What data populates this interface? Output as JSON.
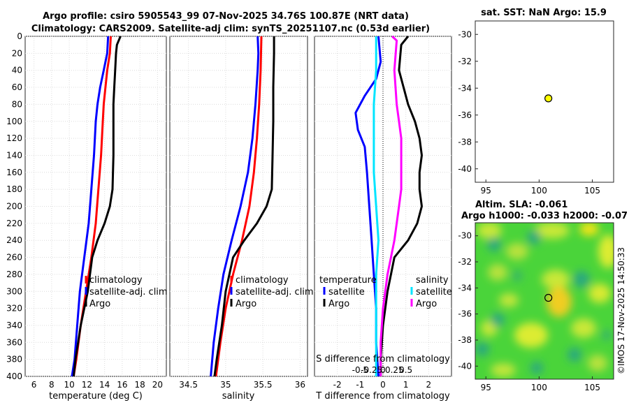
{
  "header": {
    "title_line1": "Argo profile: csiro 5905543_99 07-Nov-2025 34.76S 100.87E (NRT data)",
    "title_line2": "Climatology: CARS2009. Satellite-adj clim: synTS_20251107.nc (0.53d earlier)"
  },
  "colors": {
    "climatology": "#ff0000",
    "satellite": "#0000ff",
    "argo": "#000000",
    "sat_diff_T": "#0000ff",
    "sat_diff_S": "#00e5ff",
    "argo_diff_S": "#ff00ff",
    "marker": "#ffff00"
  },
  "chart_data": [
    {
      "type": "line",
      "name": "temperature-profile",
      "xlabel": "temperature (deg C)",
      "ylabel": "",
      "xlim": [
        5,
        21
      ],
      "ylim": [
        400,
        0
      ],
      "xticks": [
        6,
        8,
        10,
        12,
        14,
        16,
        18,
        20
      ],
      "yticks": [
        0,
        20,
        40,
        60,
        80,
        100,
        120,
        140,
        160,
        180,
        200,
        220,
        240,
        260,
        280,
        300,
        320,
        340,
        360,
        380,
        400
      ],
      "grid": true,
      "legend": [
        "climatology",
        "satellite-adj. clim",
        "Argo"
      ],
      "series": [
        {
          "name": "climatology",
          "color": "#ff0000",
          "points": [
            [
              14.7,
              0
            ],
            [
              14.6,
              20
            ],
            [
              14.3,
              40
            ],
            [
              14.1,
              60
            ],
            [
              13.9,
              80
            ],
            [
              13.8,
              100
            ],
            [
              13.6,
              140
            ],
            [
              13.3,
              180
            ],
            [
              13.0,
              220
            ],
            [
              12.5,
              260
            ],
            [
              11.9,
              300
            ],
            [
              11.3,
              340
            ],
            [
              10.8,
              380
            ],
            [
              10.5,
              400
            ]
          ]
        },
        {
          "name": "satellite-adj. clim",
          "color": "#0000ff",
          "points": [
            [
              14.4,
              0
            ],
            [
              14.3,
              20
            ],
            [
              13.9,
              40
            ],
            [
              13.5,
              60
            ],
            [
              13.2,
              80
            ],
            [
              13.0,
              100
            ],
            [
              12.8,
              140
            ],
            [
              12.5,
              180
            ],
            [
              12.2,
              220
            ],
            [
              11.7,
              260
            ],
            [
              11.2,
              300
            ],
            [
              10.9,
              340
            ],
            [
              10.6,
              380
            ],
            [
              10.3,
              400
            ]
          ]
        },
        {
          "name": "Argo",
          "color": "#000000",
          "points": [
            [
              15.8,
              0
            ],
            [
              15.4,
              10
            ],
            [
              15.3,
              20
            ],
            [
              15.2,
              40
            ],
            [
              15.1,
              60
            ],
            [
              15.0,
              80
            ],
            [
              15.0,
              100
            ],
            [
              15.0,
              140
            ],
            [
              14.9,
              180
            ],
            [
              14.6,
              200
            ],
            [
              14.0,
              220
            ],
            [
              13.2,
              240
            ],
            [
              12.6,
              260
            ],
            [
              12.1,
              300
            ],
            [
              11.3,
              340
            ],
            [
              10.7,
              380
            ],
            [
              10.5,
              400
            ]
          ]
        }
      ]
    },
    {
      "type": "line",
      "name": "salinity-profile",
      "xlabel": "salinity",
      "ylabel": "",
      "xlim": [
        34.25,
        36.1
      ],
      "ylim": [
        400,
        0
      ],
      "xticks": [
        34.5,
        35,
        35.5,
        36
      ],
      "xticklabels": [
        "34.5",
        "35",
        "35.5",
        "36"
      ],
      "grid": true,
      "legend": [
        "climatology",
        "satellite-adj. clim",
        "Argo"
      ],
      "series": [
        {
          "name": "climatology",
          "color": "#ff0000",
          "points": [
            [
              35.48,
              0
            ],
            [
              35.47,
              40
            ],
            [
              35.45,
              80
            ],
            [
              35.42,
              120
            ],
            [
              35.38,
              160
            ],
            [
              35.32,
              200
            ],
            [
              35.22,
              240
            ],
            [
              35.1,
              280
            ],
            [
              35.0,
              320
            ],
            [
              34.93,
              360
            ],
            [
              34.87,
              400
            ]
          ]
        },
        {
          "name": "satellite-adj. clim",
          "color": "#0000ff",
          "points": [
            [
              35.43,
              0
            ],
            [
              35.44,
              20
            ],
            [
              35.43,
              40
            ],
            [
              35.4,
              80
            ],
            [
              35.36,
              120
            ],
            [
              35.3,
              160
            ],
            [
              35.2,
              200
            ],
            [
              35.08,
              240
            ],
            [
              34.97,
              280
            ],
            [
              34.9,
              320
            ],
            [
              34.84,
              360
            ],
            [
              34.8,
              400
            ]
          ]
        },
        {
          "name": "Argo",
          "color": "#000000",
          "points": [
            [
              35.65,
              0
            ],
            [
              35.65,
              20
            ],
            [
              35.64,
              60
            ],
            [
              35.64,
              100
            ],
            [
              35.63,
              140
            ],
            [
              35.62,
              180
            ],
            [
              35.55,
              200
            ],
            [
              35.42,
              220
            ],
            [
              35.25,
              240
            ],
            [
              35.1,
              260
            ],
            [
              35.0,
              300
            ],
            [
              34.95,
              340
            ],
            [
              34.88,
              380
            ],
            [
              34.85,
              400
            ]
          ]
        }
      ]
    },
    {
      "type": "line",
      "name": "difference-profile",
      "xlabel": "T difference from climatology",
      "top_axis_label": "S difference from climatology",
      "xlim": [
        -3,
        3
      ],
      "ylim": [
        400,
        0
      ],
      "xticks": [
        -2,
        -1,
        0,
        1,
        2
      ],
      "xticklabels": [
        "-2",
        "-1",
        "0",
        "1",
        "2"
      ],
      "top_ticklabels": [
        "-0.5",
        "-0.25",
        "0",
        "0.25",
        "0.5"
      ],
      "grid": true,
      "legend_temperature": {
        "title": "temperature",
        "items": [
          "satellite",
          "Argo"
        ]
      },
      "legend_salinity": {
        "title": "salinity",
        "items": [
          "satellite",
          "Argo"
        ]
      },
      "series": [
        {
          "name": "T satellite",
          "color": "#0000ff",
          "points": [
            [
              -0.2,
              0
            ],
            [
              -0.1,
              30
            ],
            [
              -0.3,
              50
            ],
            [
              -0.8,
              70
            ],
            [
              -1.2,
              90
            ],
            [
              -1.1,
              110
            ],
            [
              -0.8,
              130
            ],
            [
              -0.7,
              160
            ],
            [
              -0.6,
              200
            ],
            [
              -0.5,
              240
            ],
            [
              -0.4,
              280
            ],
            [
              -0.3,
              320
            ],
            [
              -0.3,
              360
            ],
            [
              -0.2,
              400
            ]
          ]
        },
        {
          "name": "T Argo",
          "color": "#000000",
          "points": [
            [
              1.1,
              0
            ],
            [
              0.8,
              10
            ],
            [
              0.7,
              40
            ],
            [
              0.9,
              60
            ],
            [
              1.1,
              80
            ],
            [
              1.4,
              100
            ],
            [
              1.6,
              120
            ],
            [
              1.7,
              140
            ],
            [
              1.6,
              160
            ],
            [
              1.6,
              180
            ],
            [
              1.7,
              200
            ],
            [
              1.5,
              220
            ],
            [
              1.1,
              240
            ],
            [
              0.5,
              260
            ],
            [
              0.2,
              300
            ],
            [
              0.0,
              340
            ],
            [
              -0.1,
              380
            ],
            [
              -0.1,
              400
            ]
          ]
        },
        {
          "name": "S satellite",
          "color": "#00e5ff",
          "points": [
            [
              -0.3,
              0
            ],
            [
              -0.3,
              40
            ],
            [
              -0.4,
              80
            ],
            [
              -0.4,
              120
            ],
            [
              -0.4,
              160
            ],
            [
              -0.3,
              200
            ],
            [
              -0.2,
              240
            ],
            [
              -0.3,
              280
            ],
            [
              -0.3,
              320
            ],
            [
              -0.3,
              360
            ],
            [
              -0.3,
              400
            ]
          ]
        },
        {
          "name": "S Argo",
          "color": "#ff00ff",
          "points": [
            [
              0.4,
              0
            ],
            [
              0.6,
              5
            ],
            [
              0.5,
              40
            ],
            [
              0.6,
              80
            ],
            [
              0.7,
              100
            ],
            [
              0.8,
              120
            ],
            [
              0.8,
              160
            ],
            [
              0.8,
              180
            ],
            [
              0.7,
              200
            ],
            [
              0.5,
              240
            ],
            [
              0.2,
              280
            ],
            [
              0.0,
              320
            ],
            [
              -0.1,
              360
            ],
            [
              -0.1,
              400
            ]
          ]
        }
      ]
    },
    {
      "type": "scatter",
      "name": "sst-map",
      "title": "sat. SST: NaN Argo: 15.9",
      "xlim": [
        94,
        107
      ],
      "ylim": [
        -41,
        -29
      ],
      "xticks": [
        95,
        100,
        105
      ],
      "yticks": [
        -30,
        -32,
        -34,
        -36,
        -38,
        -40
      ],
      "points": [
        [
          100.87,
          -34.76
        ]
      ]
    },
    {
      "type": "heatmap",
      "name": "sla-map",
      "title_line1": "Altim. SLA: -0.061",
      "title_line2": "Argo h1000: -0.033 h2000: -0.07",
      "xlim": [
        94,
        107
      ],
      "ylim": [
        -41,
        -29
      ],
      "xticks": [
        95,
        100,
        105
      ],
      "yticks": [
        -30,
        -32,
        -34,
        -36,
        -38,
        -40
      ],
      "points": [
        [
          100.87,
          -34.76
        ]
      ]
    }
  ],
  "watermark": "©IMOS 17-Nov-2025 14:50:33"
}
